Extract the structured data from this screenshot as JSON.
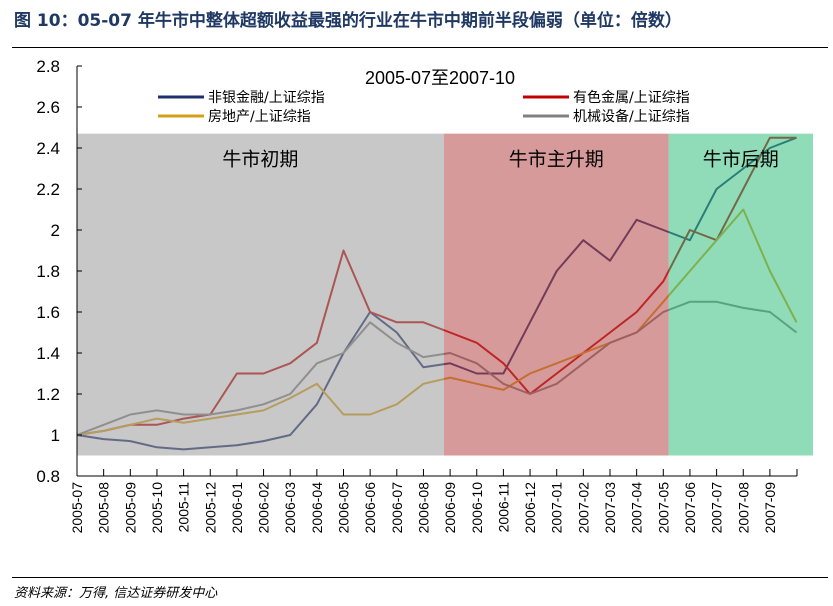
{
  "figure": {
    "title": "图 10：05-07 年牛市中整体超额收益最强的行业在牛市中期前半段偏弱（单位：倍数）",
    "source": "资料来源：万得, 信达证券研发中心"
  },
  "chart_data": {
    "type": "line",
    "title": "2005-07至2007-10",
    "xlabel": "",
    "ylabel": "",
    "ylim": [
      0.8,
      2.8
    ],
    "yticks": [
      "0.8",
      "1",
      "1.2",
      "1.4",
      "1.6",
      "1.8",
      "2",
      "2.2",
      "2.4",
      "2.6",
      "2.8"
    ],
    "xticks": [
      "2005-07",
      "2005-08",
      "2005-09",
      "2005-10",
      "2005-11",
      "2005-12",
      "2006-01",
      "2006-02",
      "2006-03",
      "2006-04",
      "2006-05",
      "2006-06",
      "2006-07",
      "2006-08",
      "2006-09",
      "2006-10",
      "2006-11",
      "2006-12",
      "2007-01",
      "2007-02",
      "2007-03",
      "2007-04",
      "2007-05",
      "2007-06",
      "2007-07",
      "2007-08",
      "2007-09"
    ],
    "grid": false,
    "legend": "top",
    "x": [
      "2005-07",
      "2005-08",
      "2005-09",
      "2005-10",
      "2005-11",
      "2005-12",
      "2006-01",
      "2006-02",
      "2006-03",
      "2006-04",
      "2006-05",
      "2006-06",
      "2006-07",
      "2006-08",
      "2006-09",
      "2006-10",
      "2006-11",
      "2006-12",
      "2007-01",
      "2007-02",
      "2007-03",
      "2007-04",
      "2007-05",
      "2007-06",
      "2007-07",
      "2007-08",
      "2007-09",
      "2007-10"
    ],
    "series": [
      {
        "name": "非银金融/上证综指",
        "color": "#1f2f6e",
        "values": [
          1.0,
          0.98,
          0.97,
          0.94,
          0.93,
          0.94,
          0.95,
          0.97,
          1.0,
          1.15,
          1.4,
          1.6,
          1.5,
          1.33,
          1.35,
          1.3,
          1.3,
          1.55,
          1.8,
          1.95,
          1.85,
          2.05,
          2.0,
          1.95,
          2.2,
          2.3,
          2.4,
          2.45
        ]
      },
      {
        "name": "有色金属/上证综指",
        "color": "#c00000",
        "values": [
          1.0,
          1.02,
          1.05,
          1.05,
          1.08,
          1.1,
          1.3,
          1.3,
          1.35,
          1.45,
          1.9,
          1.6,
          1.55,
          1.55,
          1.5,
          1.45,
          1.35,
          1.2,
          1.3,
          1.4,
          1.5,
          1.6,
          1.75,
          2.0,
          1.95,
          2.2,
          2.45,
          2.45
        ]
      },
      {
        "name": "房地产/上证综指",
        "color": "#d4a017",
        "values": [
          1.0,
          1.02,
          1.05,
          1.08,
          1.06,
          1.08,
          1.1,
          1.12,
          1.18,
          1.25,
          1.1,
          1.1,
          1.15,
          1.25,
          1.28,
          1.25,
          1.22,
          1.3,
          1.35,
          1.4,
          1.45,
          1.5,
          1.65,
          1.8,
          1.95,
          2.1,
          1.8,
          1.55
        ]
      },
      {
        "name": "机械设备/上证综指",
        "color": "#808080",
        "values": [
          1.0,
          1.05,
          1.1,
          1.12,
          1.1,
          1.1,
          1.12,
          1.15,
          1.2,
          1.35,
          1.4,
          1.55,
          1.45,
          1.38,
          1.4,
          1.35,
          1.25,
          1.2,
          1.25,
          1.35,
          1.45,
          1.5,
          1.6,
          1.65,
          1.65,
          1.62,
          1.6,
          1.5
        ]
      }
    ],
    "regions": [
      {
        "label": "牛市初期",
        "start": "2005-07-01",
        "end": "2006-08-24",
        "color": "#9b9b9b",
        "ymin": 0.9,
        "ymax": 2.47
      },
      {
        "label": "牛市主升期",
        "start": "2006-08-24",
        "end": "2007-05-07",
        "color": "#b64747",
        "ymin": 0.9,
        "ymax": 2.47
      },
      {
        "label": "牛市后期",
        "start": "2007-05-07",
        "end": "2007-10-20",
        "color": "#35c07e",
        "ymin": 0.9,
        "ymax": 2.47
      }
    ]
  }
}
